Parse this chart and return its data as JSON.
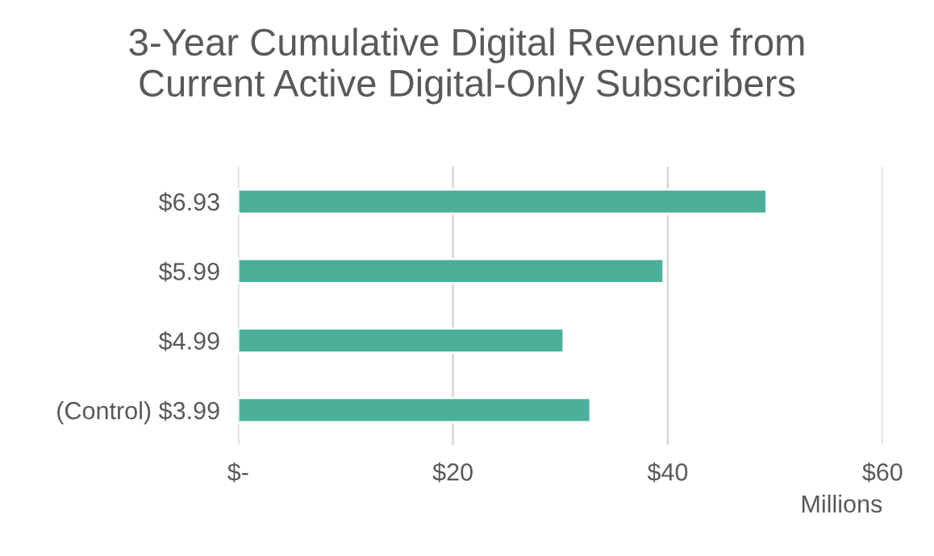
{
  "chart_data": {
    "type": "bar",
    "orientation": "horizontal",
    "title": "3-Year Cumulative Digital Revenue from\nCurrent Active Digital-Only Subscribers",
    "xlabel": "Millions",
    "categories": [
      "$6.93",
      "$5.99",
      "$4.99",
      "(Control) $3.99"
    ],
    "values": [
      49.2,
      39.6,
      30.3,
      32.8
    ],
    "color": "#4caf9a",
    "xlim": [
      0,
      60
    ],
    "xticks": [
      {
        "value": 0,
        "label": "$-"
      },
      {
        "value": 20,
        "label": "$20"
      },
      {
        "value": 40,
        "label": "$40"
      },
      {
        "value": 60,
        "label": "$60"
      }
    ],
    "grid": "x",
    "legend": false
  }
}
